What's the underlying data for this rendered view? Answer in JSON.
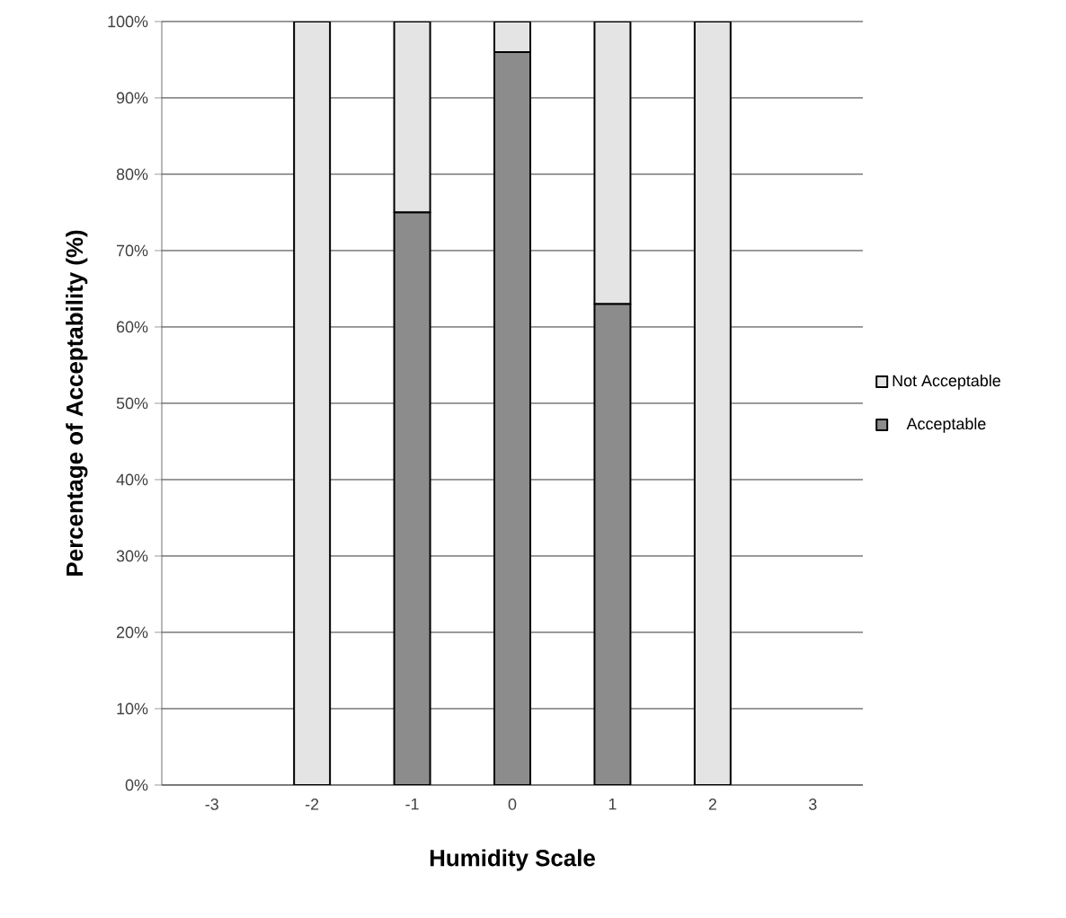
{
  "chart_data": {
    "type": "bar",
    "stacked": true,
    "xlabel": "Humidity Scale",
    "ylabel": "Percentage of Acceptability (%)",
    "categories": [
      "-3",
      "-2",
      "-1",
      "0",
      "1",
      "2",
      "3"
    ],
    "series": [
      {
        "name": "Acceptable",
        "color": "#8c8c8c",
        "values": [
          null,
          0,
          75,
          96,
          63,
          0,
          null
        ]
      },
      {
        "name": "Not Acceptable",
        "color": "#e4e4e4",
        "values": [
          null,
          100,
          25,
          4,
          37,
          100,
          null
        ]
      }
    ],
    "ylim": [
      0,
      100
    ],
    "yticks": [
      {
        "value": 0,
        "label": "0%"
      },
      {
        "value": 10,
        "label": "10%"
      },
      {
        "value": 20,
        "label": "20%"
      },
      {
        "value": 30,
        "label": "30%"
      },
      {
        "value": 40,
        "label": "40%"
      },
      {
        "value": 50,
        "label": "50%"
      },
      {
        "value": 60,
        "label": "60%"
      },
      {
        "value": 70,
        "label": "70%"
      },
      {
        "value": 80,
        "label": "80%"
      },
      {
        "value": 90,
        "label": "90%"
      },
      {
        "value": 100,
        "label": "100%"
      }
    ],
    "grid": "y",
    "legend": "right"
  }
}
